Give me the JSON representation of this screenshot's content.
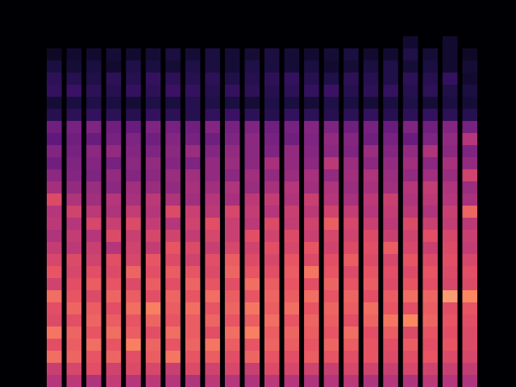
{
  "chart_data": {
    "type": "heatmap",
    "tick_labels": false,
    "zlim": [
      0,
      100
    ],
    "cells": [
      [
        0,
        0,
        0,
        0,
        0,
        0,
        0,
        0,
        0,
        0,
        0,
        0,
        0,
        0,
        0,
        0,
        0,
        0,
        0,
        0,
        0,
        0
      ],
      [
        0,
        0,
        0,
        0,
        0,
        0,
        0,
        0,
        0,
        0,
        0,
        0,
        0,
        0,
        0,
        0,
        0,
        0,
        0,
        0,
        0,
        0
      ],
      [
        0,
        0,
        0,
        0,
        0,
        0,
        0,
        0,
        0,
        0,
        0,
        0,
        0,
        0,
        0,
        0,
        0,
        0,
        0,
        0,
        0,
        0
      ],
      [
        0,
        0,
        0,
        0,
        0,
        0,
        0,
        0,
        0,
        0,
        0,
        0,
        0,
        0,
        0,
        0,
        0,
        0,
        10,
        0,
        10,
        0
      ],
      [
        8,
        10,
        10,
        12,
        10,
        12,
        14,
        12,
        14,
        12,
        12,
        14,
        12,
        10,
        12,
        14,
        10,
        10,
        16,
        12,
        10,
        8
      ],
      [
        14,
        12,
        14,
        10,
        16,
        14,
        12,
        16,
        14,
        12,
        16,
        14,
        12,
        14,
        10,
        12,
        14,
        16,
        12,
        14,
        10,
        12
      ],
      [
        20,
        18,
        16,
        20,
        18,
        22,
        20,
        18,
        20,
        16,
        18,
        20,
        22,
        18,
        16,
        20,
        18,
        16,
        20,
        18,
        22,
        10
      ],
      [
        22,
        24,
        20,
        18,
        22,
        20,
        24,
        22,
        18,
        22,
        20,
        18,
        20,
        22,
        24,
        18,
        20,
        22,
        18,
        20,
        16,
        14
      ],
      [
        12,
        14,
        16,
        14,
        12,
        16,
        14,
        18,
        16,
        14,
        12,
        16,
        14,
        12,
        16,
        14,
        12,
        14,
        16,
        12,
        14,
        12
      ],
      [
        18,
        20,
        22,
        20,
        18,
        22,
        20,
        18,
        22,
        24,
        20,
        18,
        22,
        20,
        18,
        20,
        22,
        18,
        20,
        22,
        20,
        18
      ],
      [
        40,
        42,
        44,
        40,
        38,
        44,
        42,
        40,
        46,
        42,
        44,
        40,
        42,
        46,
        44,
        40,
        42,
        38,
        44,
        40,
        46,
        42
      ],
      [
        35,
        40,
        38,
        42,
        44,
        40,
        46,
        42,
        40,
        44,
        48,
        42,
        40,
        44,
        50,
        46,
        40,
        42,
        38,
        44,
        50,
        60
      ],
      [
        45,
        42,
        48,
        50,
        46,
        44,
        48,
        52,
        46,
        50,
        48,
        44,
        50,
        46,
        48,
        44,
        52,
        46,
        50,
        58,
        48,
        44
      ],
      [
        40,
        44,
        46,
        42,
        48,
        50,
        46,
        44,
        50,
        52,
        48,
        56,
        50,
        48,
        62,
        52,
        48,
        50,
        54,
        48,
        56,
        50
      ],
      [
        48,
        46,
        44,
        50,
        46,
        48,
        52,
        54,
        50,
        48,
        54,
        50,
        52,
        56,
        50,
        54,
        58,
        52,
        50,
        54,
        52,
        68
      ],
      [
        55,
        50,
        52,
        48,
        54,
        52,
        50,
        56,
        54,
        58,
        52,
        56,
        60,
        54,
        58,
        52,
        56,
        54,
        60,
        64,
        58,
        52
      ],
      [
        72,
        58,
        54,
        60,
        56,
        62,
        58,
        54,
        60,
        56,
        62,
        64,
        58,
        66,
        60,
        56,
        62,
        66,
        58,
        62,
        60,
        56
      ],
      [
        60,
        68,
        62,
        58,
        64,
        60,
        72,
        66,
        62,
        70,
        64,
        60,
        66,
        62,
        68,
        64,
        60,
        64,
        62,
        58,
        66,
        80
      ],
      [
        62,
        60,
        70,
        66,
        72,
        64,
        60,
        68,
        74,
        66,
        62,
        72,
        64,
        68,
        78,
        70,
        66,
        62,
        72,
        66,
        64,
        62
      ],
      [
        58,
        64,
        60,
        72,
        66,
        70,
        68,
        64,
        70,
        66,
        74,
        68,
        72,
        66,
        70,
        68,
        72,
        66,
        68,
        74,
        70,
        66
      ],
      [
        64,
        62,
        66,
        60,
        68,
        64,
        76,
        72,
        66,
        70,
        68,
        74,
        70,
        76,
        68,
        72,
        74,
        78,
        70,
        66,
        72,
        64
      ],
      [
        70,
        72,
        68,
        74,
        70,
        76,
        72,
        68,
        74,
        78,
        72,
        70,
        76,
        72,
        74,
        78,
        72,
        70,
        76,
        72,
        74,
        70
      ],
      [
        76,
        70,
        74,
        72,
        80,
        74,
        78,
        76,
        72,
        80,
        76,
        74,
        78,
        84,
        76,
        72,
        76,
        74,
        72,
        76,
        72,
        74
      ],
      [
        68,
        74,
        78,
        76,
        72,
        78,
        74,
        80,
        76,
        74,
        82,
        78,
        76,
        74,
        80,
        76,
        78,
        72,
        76,
        74,
        70,
        72
      ],
      [
        82,
        76,
        72,
        80,
        78,
        74,
        80,
        76,
        82,
        78,
        76,
        80,
        78,
        82,
        76,
        80,
        74,
        78,
        82,
        80,
        90,
        88
      ],
      [
        74,
        80,
        78,
        74,
        82,
        86,
        78,
        82,
        76,
        80,
        84,
        78,
        82,
        76,
        80,
        78,
        82,
        76,
        74,
        78,
        74,
        76
      ],
      [
        72,
        74,
        80,
        78,
        76,
        80,
        76,
        78,
        80,
        76,
        78,
        82,
        76,
        80,
        78,
        74,
        80,
        84,
        88,
        80,
        76,
        74
      ],
      [
        84,
        80,
        76,
        82,
        78,
        74,
        82,
        78,
        74,
        82,
        86,
        78,
        80,
        78,
        76,
        82,
        74,
        78,
        72,
        76,
        74,
        72
      ],
      [
        74,
        78,
        82,
        76,
        86,
        80,
        76,
        80,
        84,
        78,
        76,
        80,
        78,
        76,
        80,
        78,
        76,
        74,
        78,
        74,
        76,
        72
      ],
      [
        82,
        80,
        76,
        80,
        74,
        78,
        84,
        76,
        78,
        74,
        80,
        76,
        74,
        78,
        76,
        74,
        76,
        72,
        74,
        76,
        72,
        70
      ],
      [
        66,
        70,
        74,
        68,
        72,
        70,
        66,
        72,
        68,
        70,
        66,
        72,
        70,
        68,
        66,
        70,
        68,
        66,
        70,
        68,
        66,
        64
      ],
      [
        60,
        62,
        58,
        64,
        60,
        62,
        60,
        58,
        62,
        60,
        58,
        62,
        60,
        58,
        60,
        62,
        58,
        60,
        58,
        62,
        60,
        58
      ]
    ]
  }
}
